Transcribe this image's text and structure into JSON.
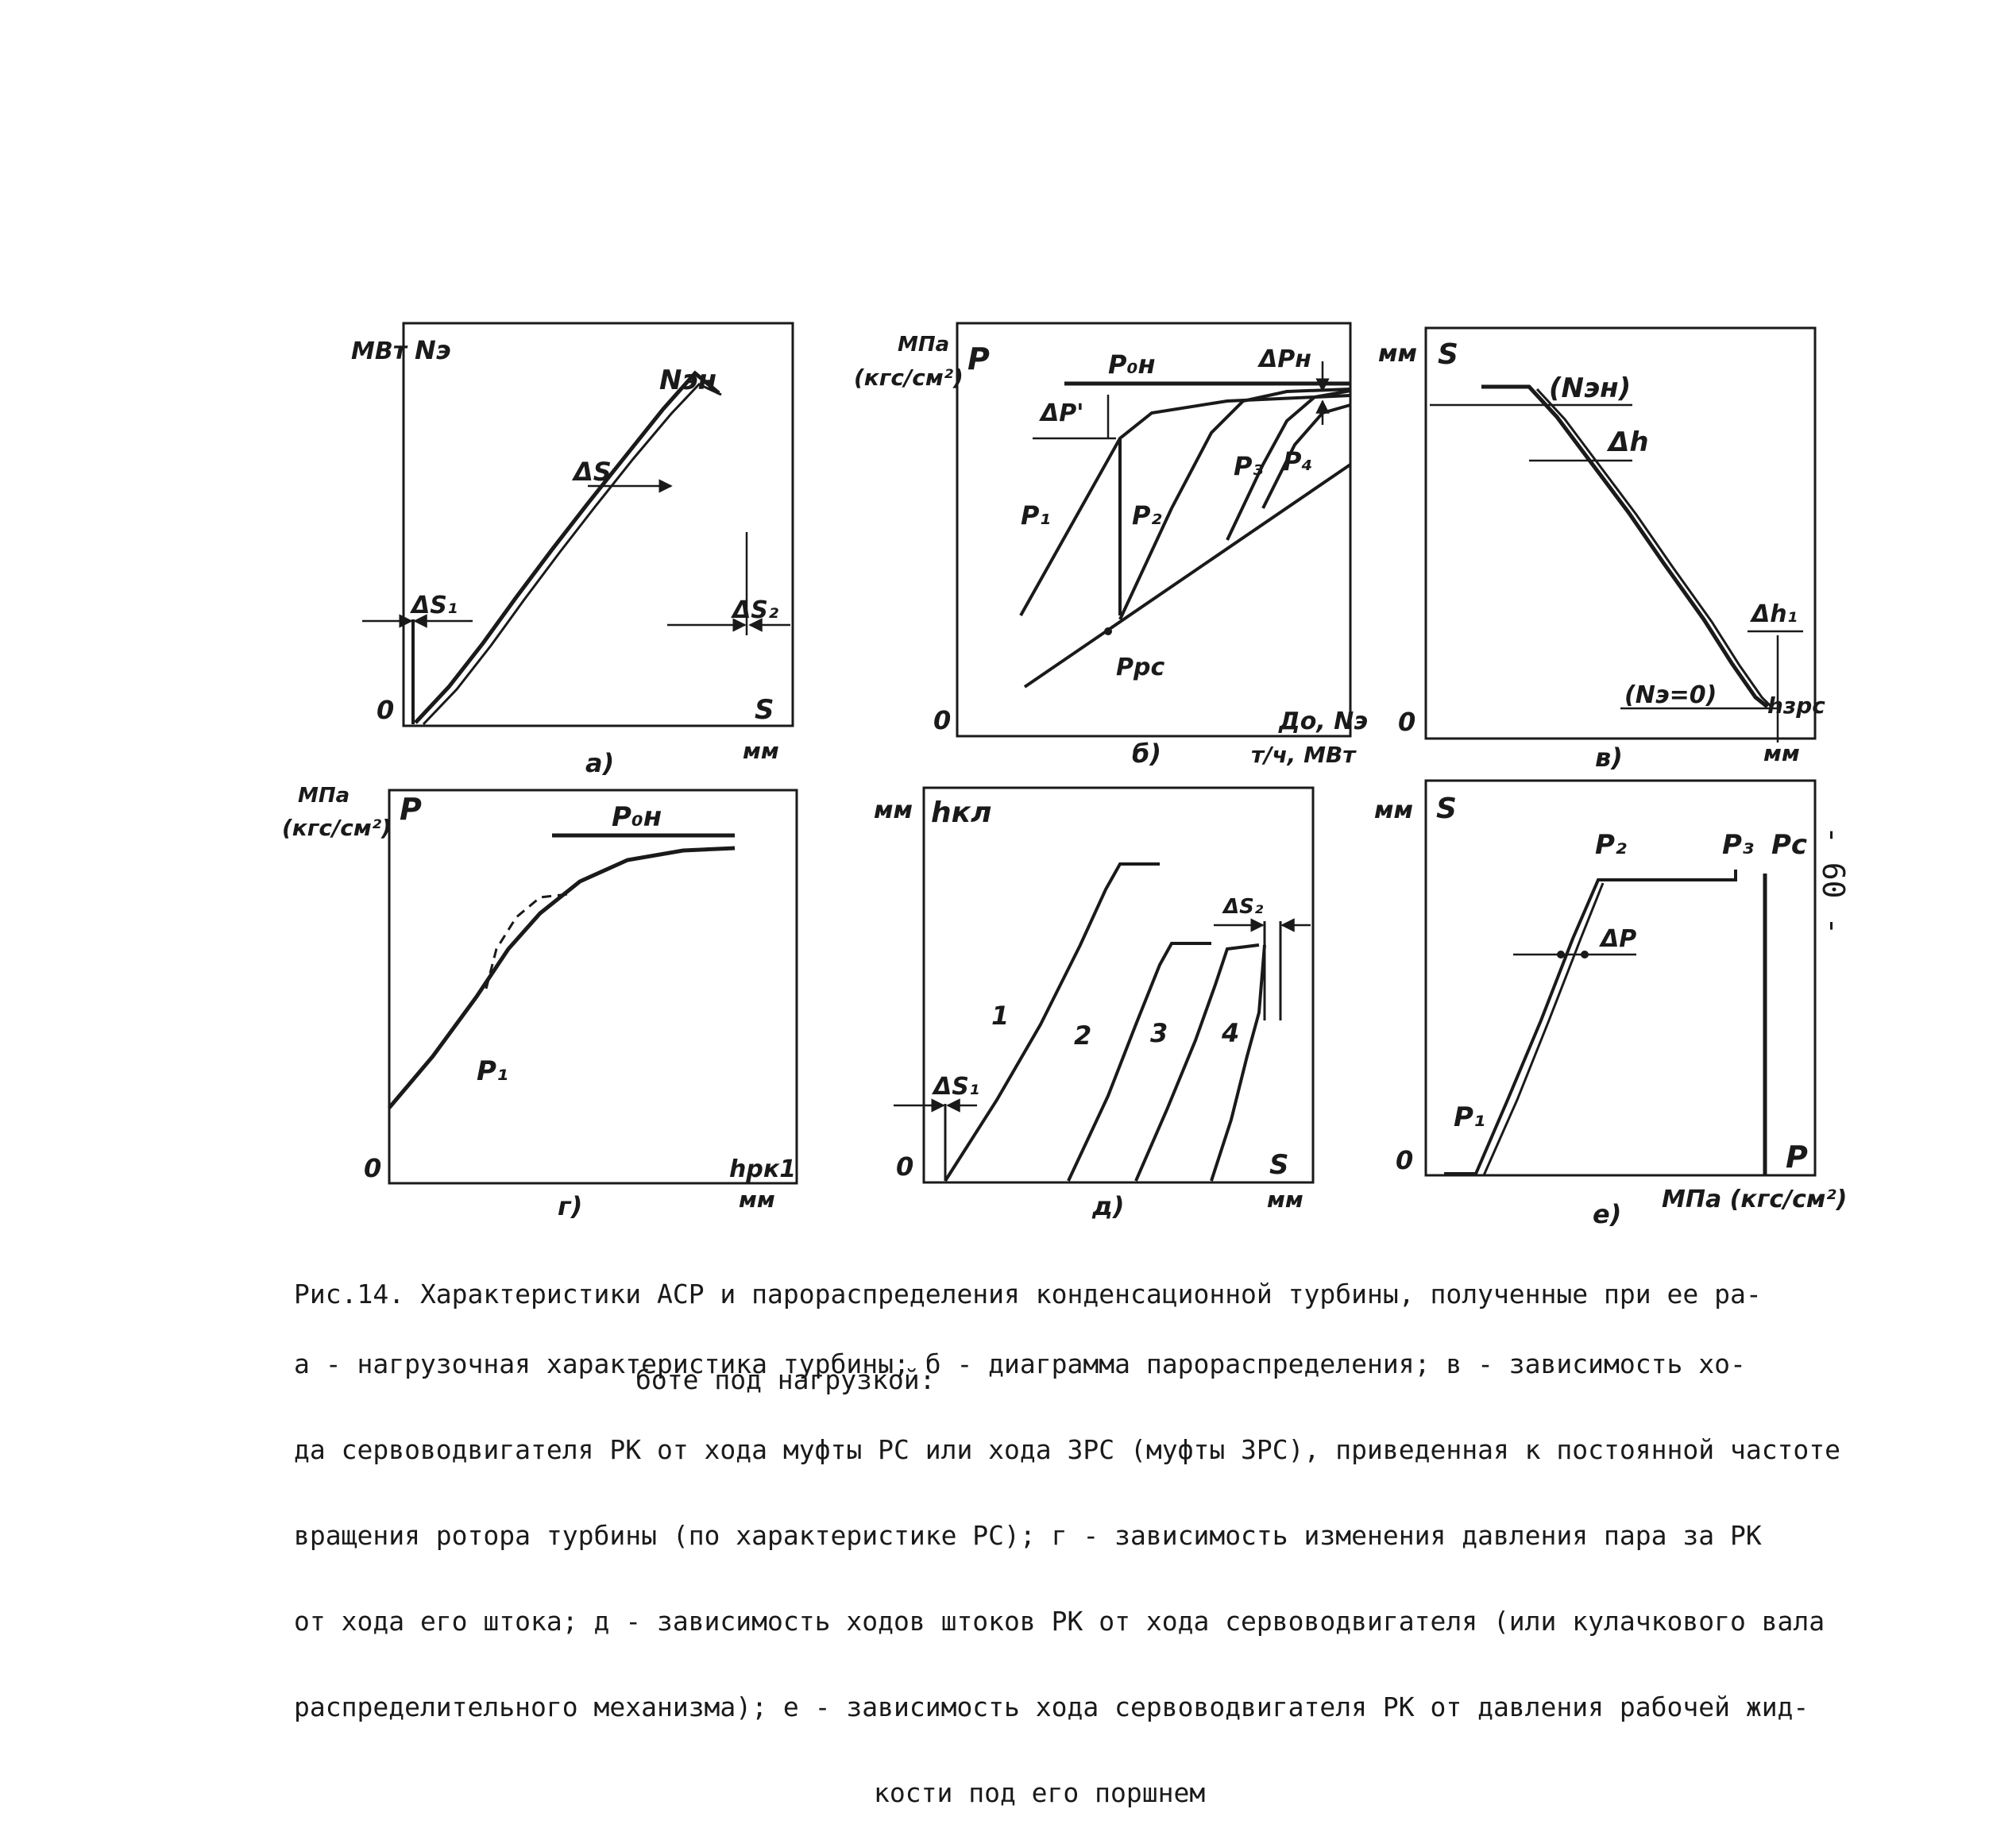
{
  "page_number": "- 60 -",
  "figure": {
    "caption_line1": "Рис.14. Характеристики АСР и парораспределения конденсационной турбины, полученные при ее ра-",
    "caption_line2": "боте под нагрузкой:",
    "legend_lines": [
      "а - нагрузочная характеристика турбины; б - диаграмма парораспределения; в - зависимость хо-",
      "да сервоводвигателя РК от хода муфты РС или хода ЗРС (муфты ЗРС), приведенная к постоянной частоте",
      "вращения ротора турбины (по характеристике РС); г - зависимость изменения давления пара за РК",
      "от хода его штока; д - зависимость ходов штоков РК от хода сервоводвигателя (или кулачкового вала",
      "распределительного механизма); е - зависимость хода сервоводвигателя РК от давления рабочей жид-",
      "кости под его поршнем"
    ],
    "panels": {
      "a": {
        "sublabel": "а)",
        "y_unit": "МВт",
        "y_name": "Nэ",
        "origin": "0",
        "x_name": "S",
        "x_unit": "мм",
        "labels": {
          "n_nom": "Nэн",
          "delta_s": "ΔS",
          "delta_s1": "ΔS₁",
          "delta_s2": "ΔS₂"
        }
      },
      "b": {
        "sublabel": "б)",
        "y_unit_1": "МПа",
        "y_unit_2": "(кгс/см²)",
        "y_name": "P",
        "origin": "0",
        "x_name": "До, Nэ",
        "x_unit": "т/ч, МВт",
        "labels": {
          "p0n": "P₀н",
          "delta_p_n": "ΔPн",
          "delta_p1": "ΔP'",
          "p1": "P₁",
          "p2": "P₂",
          "p3": "P₃",
          "p4": "P₄",
          "ppc": "Pрс"
        }
      },
      "v": {
        "sublabel": "в)",
        "y_unit": "мм",
        "y_name": "S",
        "origin": "0",
        "x_unit": "мм",
        "labels": {
          "n_nom": "(Nэн)",
          "delta_h": "Δh",
          "delta_h1": "Δh₁",
          "n_zero": "(Nэ=0)",
          "h_zrs": "hзрс"
        }
      },
      "g": {
        "sublabel": "г)",
        "y_unit_1": "МПа",
        "y_unit_2": "(кгс/см²)",
        "y_name": "P",
        "origin": "0",
        "x_name": "hрк1",
        "x_unit": "мм",
        "labels": {
          "p0n": "P₀н",
          "p1": "P₁"
        }
      },
      "d": {
        "sublabel": "д)",
        "y_unit": "мм",
        "y_name": "hкл",
        "origin": "0",
        "x_name": "S",
        "x_unit": "мм",
        "labels": {
          "delta_s1": "ΔS₁",
          "delta_s2": "ΔS₂",
          "c1": "1",
          "c2": "2",
          "c3": "3",
          "c4": "4"
        }
      },
      "e": {
        "sublabel": "е)",
        "y_unit": "мм",
        "y_name": "S",
        "origin": "0",
        "x_name": "P",
        "x_unit": "МПа (кгс/см²)",
        "labels": {
          "p1": "P₁",
          "p2": "P₂",
          "p3": "P₃",
          "pc": "Pс",
          "delta_p": "ΔP"
        }
      }
    }
  }
}
